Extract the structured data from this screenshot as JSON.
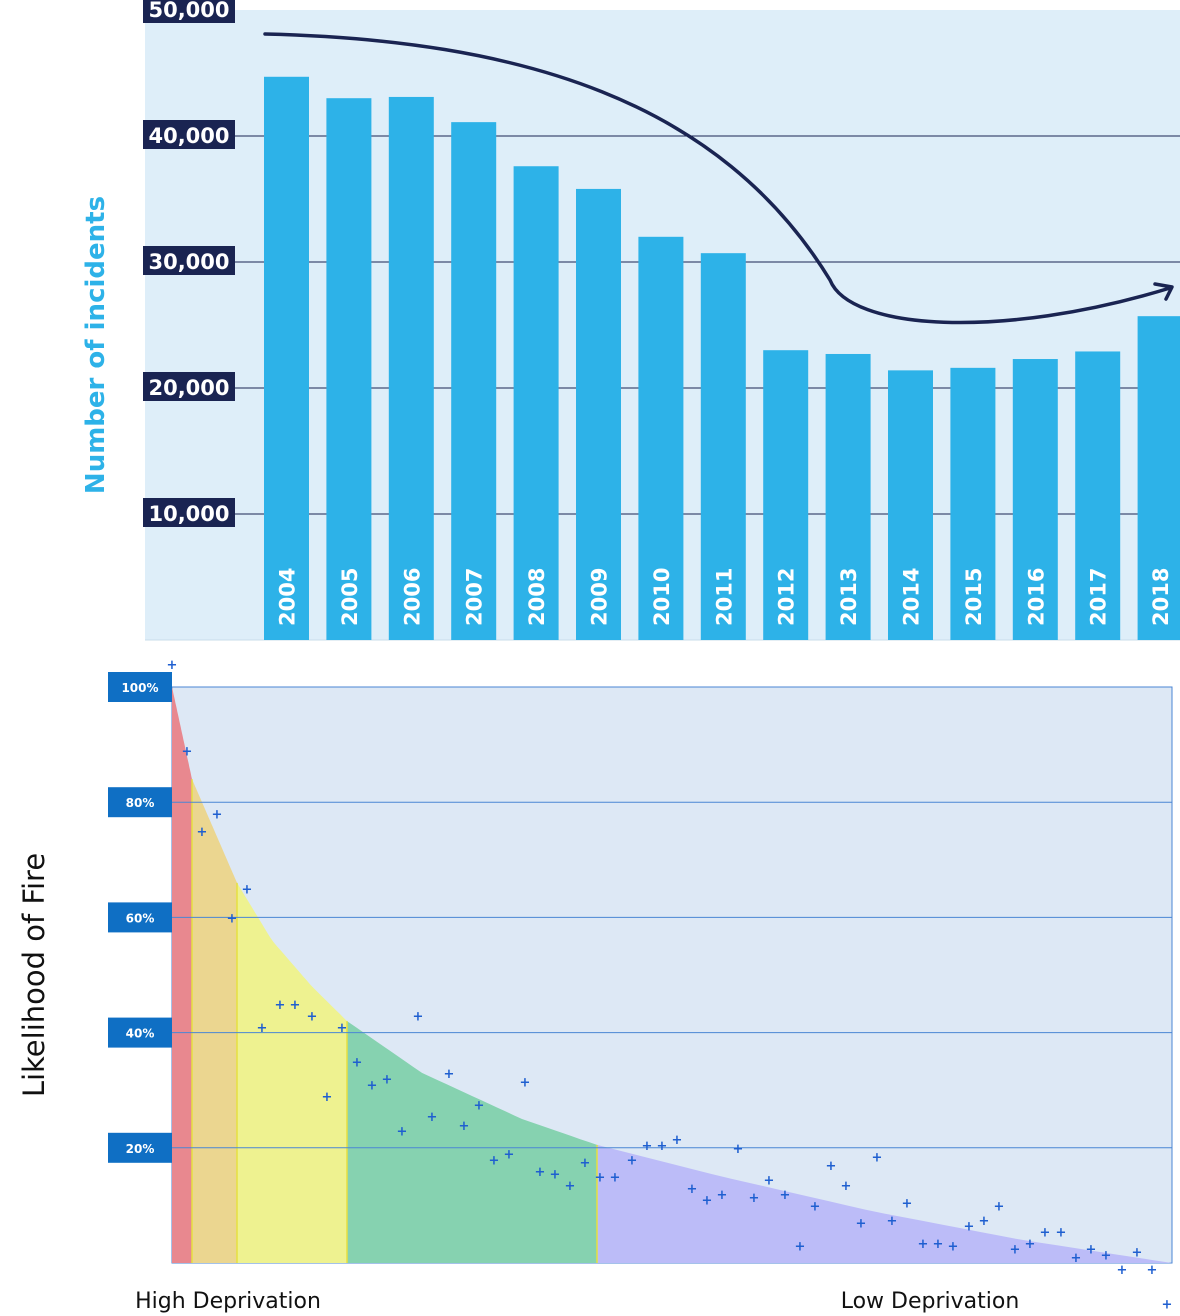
{
  "chart_data": [
    {
      "type": "bar",
      "title": "",
      "ylabel": "Number of incidents",
      "xlabel": "",
      "ylim": [
        0,
        50000
      ],
      "y_ticks": [
        "10,000",
        "20,000",
        "30,000",
        "40,000",
        "50,000"
      ],
      "y_tick_values": [
        10000,
        20000,
        30000,
        40000,
        50000
      ],
      "grid": true,
      "categories": [
        "2004",
        "2005",
        "2006",
        "2007",
        "2008",
        "2009",
        "2010",
        "2011",
        "2012",
        "2013",
        "2014",
        "2015",
        "2016",
        "2017",
        "2018"
      ],
      "values": [
        44700,
        43000,
        43100,
        41100,
        37600,
        35800,
        32000,
        30700,
        23000,
        22700,
        21400,
        21600,
        22300,
        22900,
        25700
      ],
      "colors": {
        "bar": "#2db2e8",
        "background": "#deeef9",
        "tick_box": "#1a2452",
        "trend_arrow": "#1a2452"
      },
      "annotations": [
        "trend arrow"
      ]
    },
    {
      "type": "scatter",
      "title": "",
      "ylabel": "Likelihood of Fire",
      "x_axis_labels": [
        "High Deprivation",
        "Low Deprivation"
      ],
      "xlim": [
        0,
        100
      ],
      "ylim": [
        0,
        100
      ],
      "y_ticks": [
        "20%",
        "40%",
        "60%",
        "80%",
        "100%"
      ],
      "y_tick_values": [
        20,
        40,
        60,
        80,
        100
      ],
      "grid": true,
      "colors": {
        "background": "#dde8f5",
        "grid": "#4a86d4",
        "tick_box": "#0f6fc4",
        "points": "#1f5fd0",
        "band_1": "#e8888f",
        "band_2": "#ebd690",
        "band_3": "#eef290",
        "band_4": "#86d2b0",
        "band_5": "#bcbcf8"
      },
      "curve_bands": [
        {
          "x_start": 0,
          "x_end": 2,
          "color_key": "band_1"
        },
        {
          "x_start": 2,
          "x_end": 6.5,
          "color_key": "band_2"
        },
        {
          "x_start": 6.5,
          "x_end": 17.5,
          "color_key": "band_3"
        },
        {
          "x_start": 17.5,
          "x_end": 42.5,
          "color_key": "band_4"
        },
        {
          "x_start": 42.5,
          "x_end": 100,
          "color_key": "band_5"
        }
      ],
      "curve": [
        [
          0,
          100
        ],
        [
          2,
          84
        ],
        [
          4,
          76
        ],
        [
          6.5,
          66
        ],
        [
          10,
          56
        ],
        [
          14,
          48
        ],
        [
          17.5,
          42
        ],
        [
          25,
          33
        ],
        [
          35,
          25
        ],
        [
          42.5,
          20.5
        ],
        [
          55,
          15
        ],
        [
          70,
          9
        ],
        [
          85,
          4
        ],
        [
          100,
          0
        ]
      ],
      "points": [
        [
          0,
          104
        ],
        [
          1.5,
          89
        ],
        [
          3,
          75
        ],
        [
          4.5,
          78
        ],
        [
          6,
          60
        ],
        [
          7.5,
          65
        ],
        [
          9,
          41
        ],
        [
          10.8,
          45
        ],
        [
          12.3,
          45
        ],
        [
          14,
          43
        ],
        [
          15.5,
          29
        ],
        [
          17,
          41
        ],
        [
          18.5,
          35
        ],
        [
          20,
          31
        ],
        [
          21.5,
          32
        ],
        [
          23,
          23
        ],
        [
          24.6,
          43
        ],
        [
          26,
          25.5
        ],
        [
          27.7,
          33
        ],
        [
          29.2,
          24
        ],
        [
          30.7,
          27.5
        ],
        [
          32.2,
          18
        ],
        [
          33.7,
          19
        ],
        [
          35.3,
          31.5
        ],
        [
          36.8,
          16
        ],
        [
          38.3,
          15.5
        ],
        [
          39.8,
          13.5
        ],
        [
          41.3,
          17.5
        ],
        [
          42.8,
          15
        ],
        [
          44.3,
          15
        ],
        [
          46,
          18
        ],
        [
          47.5,
          20.5
        ],
        [
          49,
          20.5
        ],
        [
          50.5,
          21.5
        ],
        [
          52,
          13
        ],
        [
          53.5,
          11
        ],
        [
          55,
          12
        ],
        [
          56.6,
          20
        ],
        [
          58.2,
          11.5
        ],
        [
          59.7,
          14.5
        ],
        [
          61.3,
          12
        ],
        [
          62.8,
          3
        ],
        [
          64.3,
          10
        ],
        [
          65.9,
          17
        ],
        [
          67.4,
          13.5
        ],
        [
          68.9,
          7
        ],
        [
          70.5,
          18.5
        ],
        [
          72,
          7.5
        ],
        [
          73.5,
          10.5
        ],
        [
          75.1,
          3.5
        ],
        [
          76.6,
          3.5
        ],
        [
          78.1,
          3
        ],
        [
          79.7,
          6.5
        ],
        [
          81.2,
          7.5
        ],
        [
          82.7,
          10
        ],
        [
          84.3,
          2.5
        ],
        [
          85.8,
          3.5
        ],
        [
          87.3,
          5.5
        ],
        [
          88.9,
          5.5
        ],
        [
          90.4,
          1
        ],
        [
          91.9,
          2.5
        ],
        [
          93.4,
          1.5
        ],
        [
          95,
          -1
        ],
        [
          96.5,
          2
        ],
        [
          98,
          -1
        ],
        [
          99.5,
          -7
        ]
      ]
    }
  ]
}
